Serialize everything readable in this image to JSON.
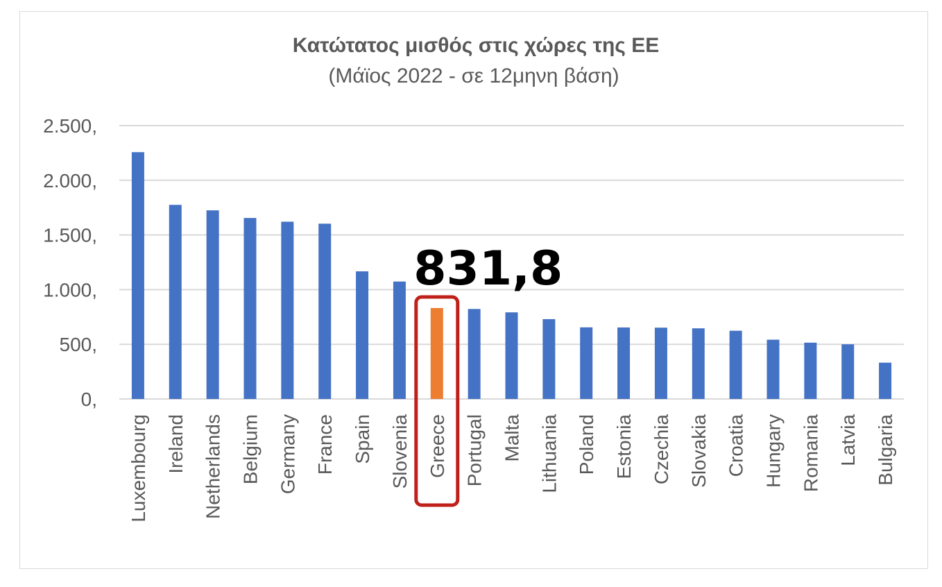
{
  "chart_data": {
    "type": "bar",
    "title": "Κατώτατος μισθός στις χώρες της ΕΕ",
    "subtitle": "(Μάϊος 2022 - σε 12μηνη βάση)",
    "xlabel": "",
    "ylabel": "",
    "ylim": [
      0,
      2500
    ],
    "yticks": [
      {
        "value": 0,
        "label": "0,"
      },
      {
        "value": 500,
        "label": "500,"
      },
      {
        "value": 1000,
        "label": "1.000,"
      },
      {
        "value": 1500,
        "label": "1.500,"
      },
      {
        "value": 2000,
        "label": "2.000,"
      },
      {
        "value": 2500,
        "label": "2.500,"
      }
    ],
    "grid": true,
    "categories": [
      "Luxembourg",
      "Ireland",
      "Netherlands",
      "Belgium",
      "Germany",
      "France",
      "Spain",
      "Slovenia",
      "Greece",
      "Portugal",
      "Malta",
      "Lithuania",
      "Poland",
      "Estonia",
      "Czechia",
      "Slovakia",
      "Croatia",
      "Hungary",
      "Romania",
      "Latvia",
      "Bulgaria"
    ],
    "values": [
      2257,
      1775,
      1725,
      1655,
      1621,
      1603,
      1167,
      1074,
      831.8,
      823,
      792,
      730,
      655,
      654,
      652,
      646,
      624,
      542,
      515,
      500,
      332
    ],
    "highlight": {
      "category": "Greece",
      "label": "831,8"
    },
    "colors": {
      "bar": "#4472c4",
      "highlight_bar": "#ed7d31",
      "highlight_box": "#c0201a",
      "grid": "#d9d9d9"
    }
  }
}
